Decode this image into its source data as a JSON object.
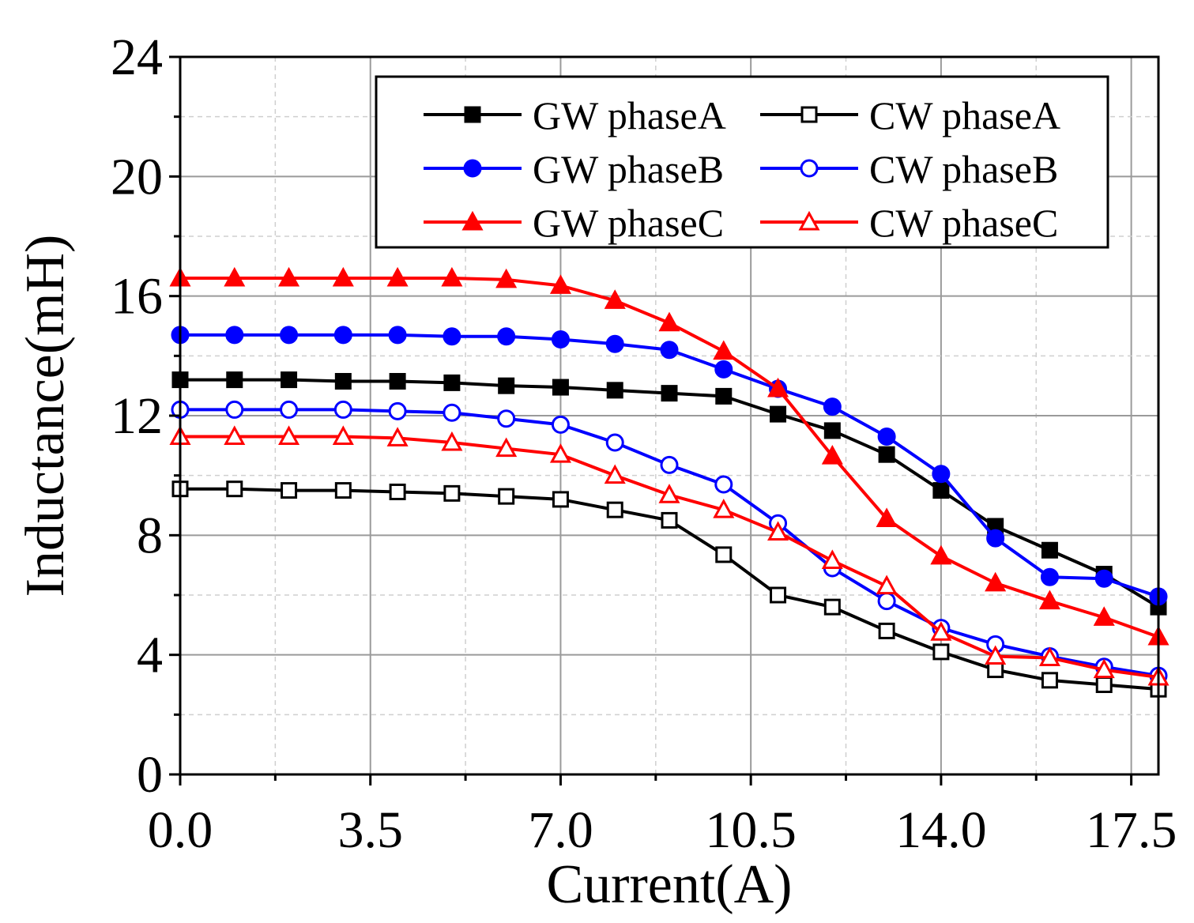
{
  "chart_data": {
    "type": "line",
    "xlabel": "Current(A)",
    "ylabel": "Inductance(mH)",
    "xlim": [
      0,
      18
    ],
    "ylim": [
      0,
      24
    ],
    "xticks": [
      0.0,
      3.5,
      7.0,
      10.5,
      14.0,
      17.5
    ],
    "xtick_labels": [
      "0.0",
      "3.5",
      "7.0",
      "10.5",
      "14.0",
      "17.5"
    ],
    "yticks": [
      0,
      4,
      8,
      12,
      16,
      20,
      24
    ],
    "ytick_labels": [
      "0",
      "4",
      "8",
      "12",
      "16",
      "20",
      "24"
    ],
    "grid": true,
    "legend_position": "top-right",
    "x": [
      0,
      1,
      2,
      3,
      4,
      5,
      6,
      7,
      8,
      9,
      10,
      11,
      12,
      13,
      14,
      15,
      16,
      17,
      18
    ],
    "series": [
      {
        "name": "GW phaseA",
        "color": "#000000",
        "marker": "square",
        "filled": true,
        "values": [
          13.2,
          13.2,
          13.2,
          13.15,
          13.15,
          13.1,
          13.0,
          12.95,
          12.85,
          12.75,
          12.65,
          12.05,
          11.5,
          10.7,
          9.5,
          8.3,
          7.5,
          6.7,
          5.6
        ]
      },
      {
        "name": "CW phaseA",
        "color": "#000000",
        "marker": "square",
        "filled": false,
        "values": [
          9.55,
          9.55,
          9.5,
          9.5,
          9.45,
          9.4,
          9.3,
          9.2,
          8.85,
          8.5,
          7.35,
          6.0,
          5.6,
          4.8,
          4.1,
          3.5,
          3.15,
          3.0,
          2.85
        ]
      },
      {
        "name": "GW phaseB",
        "color": "#0000ff",
        "marker": "circle",
        "filled": true,
        "values": [
          14.7,
          14.7,
          14.7,
          14.7,
          14.7,
          14.65,
          14.65,
          14.55,
          14.4,
          14.2,
          13.55,
          12.9,
          12.3,
          11.3,
          10.05,
          7.9,
          6.6,
          6.55,
          5.95
        ]
      },
      {
        "name": "CW phaseB",
        "color": "#0000ff",
        "marker": "circle",
        "filled": false,
        "values": [
          12.2,
          12.2,
          12.2,
          12.2,
          12.15,
          12.1,
          11.9,
          11.7,
          11.1,
          10.35,
          9.7,
          8.4,
          6.9,
          5.8,
          4.9,
          4.35,
          3.95,
          3.6,
          3.3
        ]
      },
      {
        "name": "GW phaseC",
        "color": "#ff0000",
        "marker": "triangle",
        "filled": true,
        "values": [
          16.6,
          16.6,
          16.6,
          16.6,
          16.6,
          16.6,
          16.55,
          16.35,
          15.85,
          15.1,
          14.15,
          12.9,
          10.65,
          8.55,
          7.3,
          6.4,
          5.8,
          5.25,
          4.6
        ]
      },
      {
        "name": "CW phaseC",
        "color": "#ff0000",
        "marker": "triangle",
        "filled": false,
        "values": [
          11.3,
          11.3,
          11.3,
          11.3,
          11.25,
          11.1,
          10.9,
          10.7,
          10.0,
          9.35,
          8.85,
          8.1,
          7.15,
          6.3,
          4.75,
          3.95,
          3.9,
          3.5,
          3.25
        ]
      }
    ]
  }
}
